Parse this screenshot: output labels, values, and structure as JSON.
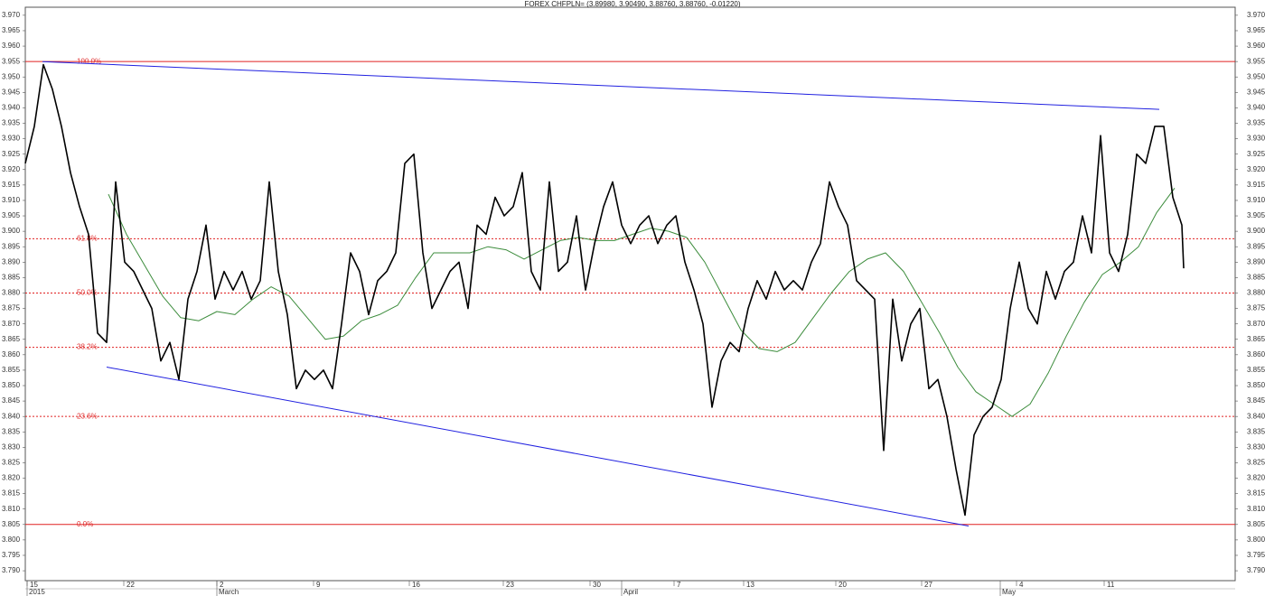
{
  "chart_data": {
    "type": "line",
    "title": "FOREX CHFPLN= (3.89980, 3.90490, 3.88760, 3.88760, -0.01220)",
    "xlim": [
      0,
      133.9
    ],
    "ylim": [
      3.7868,
      3.9726
    ],
    "xticks": [
      {
        "value": 0.2,
        "label": "15"
      },
      {
        "value": 10.9,
        "label": "22"
      },
      {
        "value": 21.2,
        "label": "2"
      },
      {
        "value": 31.9,
        "label": "9"
      },
      {
        "value": 42.5,
        "label": "16"
      },
      {
        "value": 52.9,
        "label": "23"
      },
      {
        "value": 62.5,
        "label": "30"
      },
      {
        "value": 71.8,
        "label": "7"
      },
      {
        "value": 79.5,
        "label": "13"
      },
      {
        "value": 89.7,
        "label": "20"
      },
      {
        "value": 99.2,
        "label": "27"
      },
      {
        "value": 109.7,
        "label": "4"
      },
      {
        "value": 119.4,
        "label": "11"
      }
    ],
    "period_labels": [
      {
        "value": 0.2,
        "label": "2015"
      },
      {
        "value": 21.2,
        "label": "March"
      },
      {
        "value": 66.0,
        "label": "April"
      },
      {
        "value": 107.9,
        "label": "May"
      }
    ],
    "yticks": [
      {
        "value": 3.79,
        "label": "3.790"
      },
      {
        "value": 3.795,
        "label": "3.795"
      },
      {
        "value": 3.8,
        "label": "3.800"
      },
      {
        "value": 3.805,
        "label": "3.805"
      },
      {
        "value": 3.81,
        "label": "3.810"
      },
      {
        "value": 3.815,
        "label": "3.815"
      },
      {
        "value": 3.82,
        "label": "3.820"
      },
      {
        "value": 3.825,
        "label": "3.825"
      },
      {
        "value": 3.83,
        "label": "3.830"
      },
      {
        "value": 3.835,
        "label": "3.835"
      },
      {
        "value": 3.84,
        "label": "3.840"
      },
      {
        "value": 3.845,
        "label": "3.845"
      },
      {
        "value": 3.85,
        "label": "3.850"
      },
      {
        "value": 3.855,
        "label": "3.855"
      },
      {
        "value": 3.86,
        "label": "3.860"
      },
      {
        "value": 3.865,
        "label": "3.865"
      },
      {
        "value": 3.87,
        "label": "3.870"
      },
      {
        "value": 3.875,
        "label": "3.875"
      },
      {
        "value": 3.88,
        "label": "3.880"
      },
      {
        "value": 3.885,
        "label": "3.885"
      },
      {
        "value": 3.89,
        "label": "3.890"
      },
      {
        "value": 3.895,
        "label": "3.895"
      },
      {
        "value": 3.9,
        "label": "3.900"
      },
      {
        "value": 3.905,
        "label": "3.905"
      },
      {
        "value": 3.91,
        "label": "3.910"
      },
      {
        "value": 3.915,
        "label": "3.915"
      },
      {
        "value": 3.92,
        "label": "3.920"
      },
      {
        "value": 3.925,
        "label": "3.925"
      },
      {
        "value": 3.93,
        "label": "3.930"
      },
      {
        "value": 3.935,
        "label": "3.935"
      },
      {
        "value": 3.94,
        "label": "3.940"
      },
      {
        "value": 3.945,
        "label": "3.945"
      },
      {
        "value": 3.95,
        "label": "3.950"
      },
      {
        "value": 3.955,
        "label": "3.955"
      },
      {
        "value": 3.96,
        "label": "3.960"
      },
      {
        "value": 3.965,
        "label": "3.965"
      },
      {
        "value": 3.97,
        "label": "3.970"
      }
    ],
    "series": [
      {
        "color": "#000000",
        "x": [
          0,
          1,
          2,
          3,
          4,
          5,
          6,
          7,
          8,
          9,
          10,
          11,
          12,
          13,
          14,
          15,
          16,
          17,
          18,
          19,
          20,
          21,
          22,
          23,
          24,
          25,
          26,
          27,
          28,
          29,
          30,
          31,
          32,
          33,
          34,
          35,
          36,
          37,
          38,
          39,
          40,
          41,
          42,
          43,
          44,
          45,
          46,
          47,
          48,
          49,
          50,
          51,
          52,
          53,
          54,
          55,
          56,
          57,
          58,
          59,
          60,
          61,
          62,
          63,
          64,
          65,
          66,
          67,
          68,
          69,
          70,
          71,
          72,
          73,
          74,
          75,
          76,
          77,
          78,
          79,
          80,
          81,
          82,
          83,
          84,
          85,
          86,
          87,
          88,
          89,
          90,
          91,
          92,
          93,
          94,
          95,
          96,
          97,
          98,
          99,
          100,
          101,
          102,
          103,
          104,
          105,
          106,
          107,
          108,
          109,
          110,
          111,
          112,
          113,
          114,
          115,
          116,
          117,
          118,
          119,
          120,
          121,
          122,
          123,
          124,
          125,
          126,
          127,
          128,
          128.2
        ],
        "values": [
          3.922,
          3.934,
          3.954,
          3.946,
          3.934,
          3.919,
          3.908,
          3.899,
          3.867,
          3.864,
          3.916,
          3.89,
          3.887,
          3.881,
          3.875,
          3.858,
          3.864,
          3.852,
          3.878,
          3.887,
          3.902,
          3.878,
          3.887,
          3.881,
          3.887,
          3.878,
          3.884,
          3.916,
          3.887,
          3.873,
          3.849,
          3.855,
          3.852,
          3.855,
          3.849,
          3.87,
          3.893,
          3.887,
          3.873,
          3.884,
          3.887,
          3.893,
          3.922,
          3.925,
          3.893,
          3.875,
          3.881,
          3.887,
          3.89,
          3.875,
          3.902,
          3.899,
          3.911,
          3.905,
          3.908,
          3.919,
          3.887,
          3.881,
          3.916,
          3.887,
          3.89,
          3.905,
          3.881,
          3.896,
          3.908,
          3.916,
          3.902,
          3.896,
          3.902,
          3.905,
          3.896,
          3.902,
          3.905,
          3.89,
          3.881,
          3.87,
          3.843,
          3.858,
          3.864,
          3.861,
          3.875,
          3.884,
          3.878,
          3.887,
          3.881,
          3.884,
          3.881,
          3.89,
          3.896,
          3.916,
          3.908,
          3.902,
          3.884,
          3.881,
          3.878,
          3.829,
          3.878,
          3.858,
          3.87,
          3.875,
          3.849,
          3.852,
          3.84,
          3.823,
          3.808,
          3.834,
          3.84,
          3.843,
          3.852,
          3.875,
          3.89,
          3.875,
          3.87,
          3.887,
          3.878,
          3.887,
          3.89,
          3.905,
          3.893,
          3.931,
          3.893,
          3.887,
          3.899,
          3.925,
          3.922,
          3.934,
          3.934,
          3.911,
          3.902,
          3.888
        ]
      },
      {
        "color": "#3c8c3c",
        "x": [
          9.2,
          11.2,
          13.2,
          15.2,
          17.2,
          19.2,
          21.2,
          23.2,
          25.2,
          27.2,
          29.2,
          31.2,
          33.2,
          35.2,
          37.2,
          39.2,
          41.2,
          43.2,
          45.2,
          47.2,
          49.2,
          51.2,
          53.2,
          55.2,
          57.2,
          59.2,
          61.2,
          63.2,
          65.2,
          67.2,
          69.2,
          71.2,
          73.2,
          75.2,
          77.2,
          79.2,
          81.2,
          83.2,
          85.2,
          87.2,
          89.2,
          91.2,
          93.2,
          95.2,
          97.2,
          99.2,
          101.2,
          103.2,
          105.2,
          107.2,
          109.2,
          111.2,
          113.2,
          115.2,
          117.2,
          119.2,
          121.2,
          123.2,
          125.2,
          127.2
        ],
        "values": [
          3.912,
          3.899,
          3.889,
          3.879,
          3.872,
          3.871,
          3.874,
          3.873,
          3.878,
          3.882,
          3.879,
          3.872,
          3.865,
          3.866,
          3.871,
          3.873,
          3.876,
          3.885,
          3.893,
          3.893,
          3.893,
          3.895,
          3.894,
          3.891,
          3.894,
          3.897,
          3.898,
          3.897,
          3.897,
          3.899,
          3.901,
          3.9,
          3.898,
          3.89,
          3.879,
          3.868,
          3.862,
          3.861,
          3.864,
          3.872,
          3.88,
          3.887,
          3.891,
          3.893,
          3.887,
          3.877,
          3.867,
          3.856,
          3.848,
          3.844,
          3.84,
          3.844,
          3.854,
          3.866,
          3.877,
          3.886,
          3.89,
          3.895,
          3.906,
          3.914
        ]
      }
    ],
    "levels": [
      {
        "label": "100.0%",
        "value": 3.955,
        "style": "solid"
      },
      {
        "label": "61.8%",
        "value": 3.8976,
        "style": "dotted"
      },
      {
        "label": "50.0%",
        "value": 3.88,
        "style": "dotted"
      },
      {
        "label": "38.2%",
        "value": 3.8624,
        "style": "dotted"
      },
      {
        "label": "23.6%",
        "value": 3.84,
        "style": "dotted"
      },
      {
        "label": "0.0%",
        "value": 3.805,
        "style": "solid"
      }
    ],
    "levels_color": "#e02020",
    "trendlines": [
      {
        "x": [
          1.9,
          125.5
        ],
        "values": [
          3.955,
          3.9395
        ]
      },
      {
        "x": [
          9.0,
          104.4
        ],
        "values": [
          3.856,
          3.8045
        ]
      }
    ],
    "trendline_color": "#2020e0"
  }
}
